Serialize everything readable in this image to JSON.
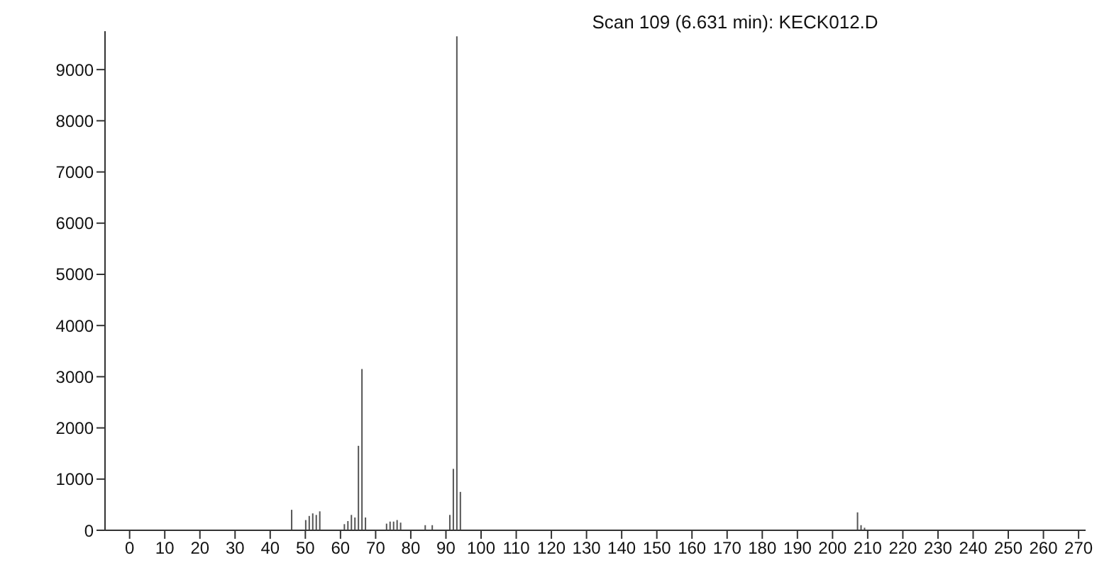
{
  "chart_data": {
    "type": "bar",
    "title": "Scan 109 (6.631 min): KECK012.D",
    "x": [
      46,
      50,
      51,
      52,
      53,
      54,
      61,
      62,
      63,
      64,
      65,
      66,
      67,
      73,
      74,
      75,
      76,
      77,
      84,
      86,
      91,
      92,
      93,
      94,
      207,
      208,
      209
    ],
    "values": [
      400,
      200,
      280,
      330,
      300,
      370,
      120,
      180,
      300,
      250,
      1650,
      3150,
      250,
      130,
      170,
      170,
      200,
      150,
      100,
      100,
      300,
      1200,
      9650,
      750,
      350,
      100,
      50
    ],
    "color": "#555555",
    "xlim": [
      -7,
      272
    ],
    "xticks": [
      0,
      10,
      20,
      30,
      40,
      50,
      60,
      70,
      80,
      90,
      100,
      110,
      120,
      130,
      140,
      150,
      160,
      170,
      180,
      190,
      200,
      210,
      220,
      230,
      240,
      250,
      260,
      270
    ],
    "ylim": [
      0,
      9750
    ],
    "yticks": [
      0,
      1000,
      2000,
      3000,
      4000,
      5000,
      6000,
      7000,
      8000,
      9000
    ]
  }
}
